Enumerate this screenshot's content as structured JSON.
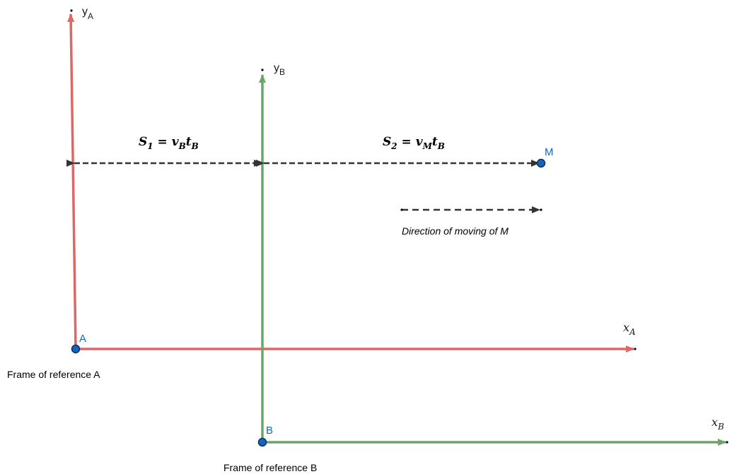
{
  "colors": {
    "frame_a": "#e06666",
    "frame_b": "#6aa56a",
    "point_fill": "#1565c0",
    "dashed": "#333333"
  },
  "frame_a": {
    "origin_label": "A",
    "y_axis_label": "y",
    "y_axis_sub": "A",
    "x_axis_label": "x",
    "x_axis_sub": "A",
    "caption": "Frame of reference A"
  },
  "frame_b": {
    "origin_label": "B",
    "y_axis_label": "y",
    "y_axis_sub": "B",
    "x_axis_label": "x",
    "x_axis_sub": "B",
    "caption": "Frame of reference B"
  },
  "point_m": {
    "label": "M"
  },
  "distances": {
    "s1": {
      "lhs": "S",
      "lhs_sub": "1",
      "eq": " = ",
      "v": "v",
      "v_sub": "B",
      "t": "t",
      "t_sub": "B"
    },
    "s2": {
      "lhs": "S",
      "lhs_sub": "2",
      "eq": " = ",
      "v": "v",
      "v_sub": "M",
      "t": "t",
      "t_sub": "B"
    }
  },
  "direction": {
    "label": "Direction of moving of M"
  }
}
